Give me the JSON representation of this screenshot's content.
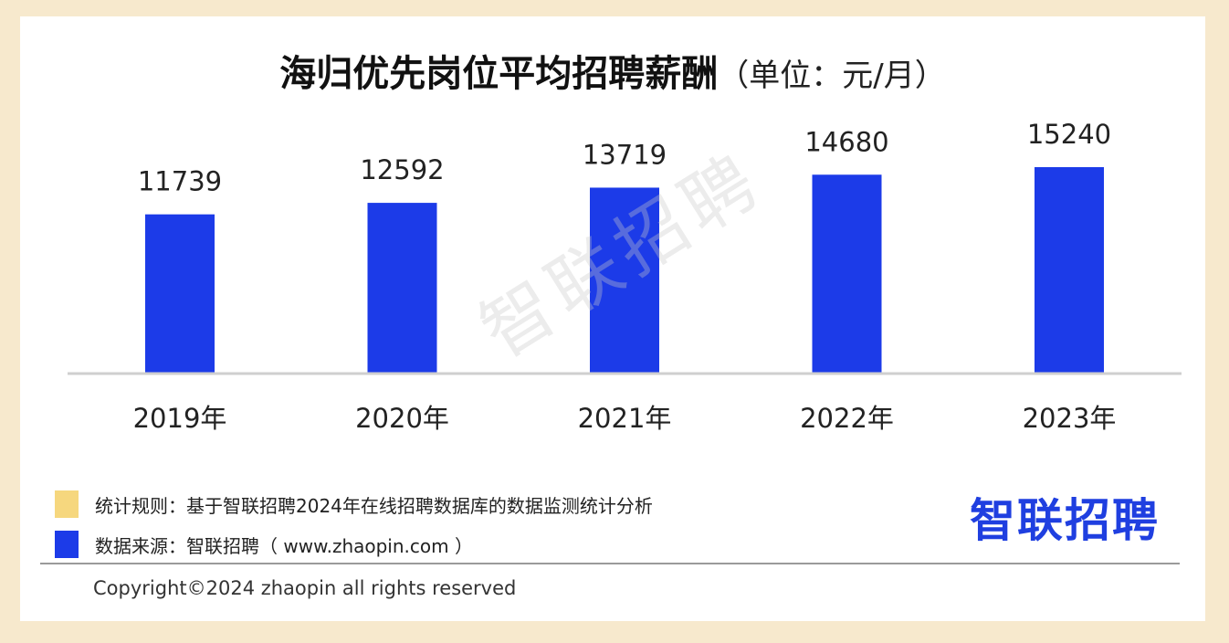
{
  "title": {
    "main": "海归优先岗位平均招聘薪酬",
    "unit": "（单位：元/月）"
  },
  "watermark": "智联招聘",
  "chart_data": {
    "type": "bar",
    "categories": [
      "2019年",
      "2020年",
      "2021年",
      "2022年",
      "2023年"
    ],
    "values": [
      11739,
      12592,
      13719,
      14680,
      15240
    ],
    "ylim": [
      0,
      16000
    ],
    "bar_color": "#1c3be8",
    "grid": false
  },
  "legend": [
    {
      "text": "统计规则：基于智联招聘2024年在线招聘数据库的数据监测统计分析",
      "color": "#f6d77e"
    },
    {
      "text": "数据来源：智联招聘（ www.zhaopin.com ）",
      "color": "#1c3be8"
    }
  ],
  "logo": "智联招聘",
  "copyright": "Copyright©2024 zhaopin all rights reserved"
}
